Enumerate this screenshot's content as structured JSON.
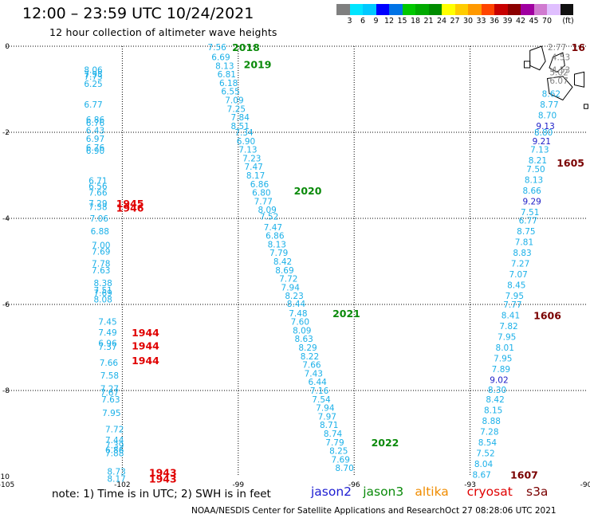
{
  "header": {
    "title": "12:00 – 23:59 UTC 10/24/2021",
    "subtitle": "12 hour collection of altimeter wave heights"
  },
  "color_scale": {
    "colors": [
      "#7f7f7f",
      "#00e5ff",
      "#00c8ff",
      "#0000ff",
      "#0073e6",
      "#00c800",
      "#00aa00",
      "#008c00",
      "#ffff00",
      "#ffcc00",
      "#ff9900",
      "#ff4400",
      "#c80000",
      "#8b0000",
      "#a000a0",
      "#d07ad0",
      "#e0bfff",
      "#111111"
    ],
    "labels": [
      "3",
      "6",
      "9",
      "12",
      "15",
      "18",
      "21",
      "24",
      "27",
      "30",
      "33",
      "36",
      "39",
      "42",
      "45",
      "70",
      "(ft)"
    ]
  },
  "map": {
    "x_ticks": [
      "-105",
      "-102",
      "-99",
      "-96",
      "-93",
      "-90"
    ],
    "y_ticks": [
      "0",
      "-2",
      "-4",
      "-6",
      "-8",
      "-10"
    ],
    "track_colors": {
      "jason2": "#1c1cd2",
      "jason3": "#0a8a0a",
      "altika": "#f08c00",
      "cryosat": "#e00000",
      "s3a": "#7a0000",
      "swh": "#1bb0e8",
      "swh_high": "#2020c8",
      "island": "#000000",
      "coast_label": "#808080"
    },
    "tracks": [
      {
        "name": "track-left",
        "readings": [
          {
            "lon": -102.75,
            "lat": -0.55,
            "v": "8.06"
          },
          {
            "lon": -102.75,
            "lat": -0.65,
            "v": "7.98"
          },
          {
            "lon": -102.75,
            "lat": -0.7,
            "v": "7.73"
          },
          {
            "lon": -102.75,
            "lat": -0.87,
            "v": "6.25"
          },
          {
            "lon": -102.75,
            "lat": -1.35,
            "v": "6.77"
          },
          {
            "lon": -102.7,
            "lat": -1.7,
            "v": "6.86"
          },
          {
            "lon": -102.7,
            "lat": -1.78,
            "v": "6.76"
          },
          {
            "lon": -102.7,
            "lat": -1.95,
            "v": "6.43"
          },
          {
            "lon": -102.7,
            "lat": -2.15,
            "v": "6.97"
          },
          {
            "lon": -102.7,
            "lat": -2.35,
            "v": "6.76"
          },
          {
            "lon": -102.7,
            "lat": -2.43,
            "v": "6.90"
          },
          {
            "lon": -102.63,
            "lat": -3.12,
            "v": "6.71"
          },
          {
            "lon": -102.63,
            "lat": -3.25,
            "v": "6.56"
          },
          {
            "lon": -102.63,
            "lat": -3.4,
            "v": "7.66"
          },
          {
            "lon": -102.63,
            "lat": -3.65,
            "v": "7.29"
          },
          {
            "lon": -102.63,
            "lat": -3.73,
            "v": "7.38"
          },
          {
            "lon": -102.6,
            "lat": -4.0,
            "v": "7.06"
          },
          {
            "lon": -102.58,
            "lat": -4.3,
            "v": "6.88"
          },
          {
            "lon": -102.55,
            "lat": -4.62,
            "v": "7.00"
          },
          {
            "lon": -102.55,
            "lat": -4.77,
            "v": "7.69"
          },
          {
            "lon": -102.55,
            "lat": -5.05,
            "v": "7.78"
          },
          {
            "lon": -102.55,
            "lat": -5.2,
            "v": "7.63"
          },
          {
            "lon": -102.5,
            "lat": -5.5,
            "v": "8.38"
          },
          {
            "lon": -102.5,
            "lat": -5.67,
            "v": "7.51"
          },
          {
            "lon": -102.5,
            "lat": -5.73,
            "v": "7.69"
          },
          {
            "lon": -102.5,
            "lat": -5.88,
            "v": "8.08"
          },
          {
            "lon": -102.38,
            "lat": -6.4,
            "v": "7.45"
          },
          {
            "lon": -102.38,
            "lat": -6.65,
            "v": "7.49"
          },
          {
            "lon": -102.38,
            "lat": -6.9,
            "v": "6.96"
          },
          {
            "lon": -102.38,
            "lat": -6.98,
            "v": "7.37"
          },
          {
            "lon": -102.35,
            "lat": -7.35,
            "v": "7.66"
          },
          {
            "lon": -102.33,
            "lat": -7.65,
            "v": "7.58"
          },
          {
            "lon": -102.33,
            "lat": -7.95,
            "v": "7.27"
          },
          {
            "lon": -102.33,
            "lat": -8.05,
            "v": "7.67"
          },
          {
            "lon": -102.3,
            "lat": -8.2,
            "v": "7.63"
          },
          {
            "lon": -102.28,
            "lat": -8.52,
            "v": "7.95"
          },
          {
            "lon": -102.2,
            "lat": -8.9,
            "v": "7.72"
          },
          {
            "lon": -102.2,
            "lat": -9.15,
            "v": "7.44"
          },
          {
            "lon": -102.2,
            "lat": -9.27,
            "v": "7.39"
          },
          {
            "lon": -102.2,
            "lat": -9.38,
            "v": "6.86"
          },
          {
            "lon": -102.2,
            "lat": -9.45,
            "v": "7.88"
          },
          {
            "lon": -102.15,
            "lat": -9.88,
            "v": "8.73"
          },
          {
            "lon": -102.15,
            "lat": -10.05,
            "v": "8.17"
          }
        ],
        "times": [
          {
            "lon": -101.8,
            "lat": -3.65,
            "t": "1945",
            "c": "#e00000"
          },
          {
            "lon": -101.8,
            "lat": -3.75,
            "t": "1946",
            "c": "#e00000"
          },
          {
            "lon": -101.4,
            "lat": -6.65,
            "t": "1944",
            "c": "#e00000"
          },
          {
            "lon": -101.4,
            "lat": -6.95,
            "t": "1944",
            "c": "#e00000"
          },
          {
            "lon": -101.4,
            "lat": -7.3,
            "t": "1944",
            "c": "#e00000"
          },
          {
            "lon": -100.95,
            "lat": -9.9,
            "t": "1943",
            "c": "#e00000"
          },
          {
            "lon": -100.95,
            "lat": -10.05,
            "t": "1943",
            "c": "#e00000"
          }
        ]
      },
      {
        "name": "track-middle",
        "readings": [
          {
            "lon": -99.55,
            "lat": -0.02,
            "v": "7.56"
          },
          {
            "lon": -99.45,
            "lat": -0.25,
            "v": "6.69"
          },
          {
            "lon": -99.35,
            "lat": -0.45,
            "v": "8.13"
          },
          {
            "lon": -99.3,
            "lat": -0.65,
            "v": "6.81"
          },
          {
            "lon": -99.25,
            "lat": -0.85,
            "v": "6.18"
          },
          {
            "lon": -99.2,
            "lat": -1.05,
            "v": "6.55"
          },
          {
            "lon": -99.1,
            "lat": -1.25,
            "v": "7.09"
          },
          {
            "lon": -99.05,
            "lat": -1.45,
            "v": "7.25"
          },
          {
            "lon": -98.95,
            "lat": -1.65,
            "v": "7.84"
          },
          {
            "lon": -98.95,
            "lat": -1.85,
            "v": "8.51"
          },
          {
            "lon": -98.85,
            "lat": -2.0,
            "v": "7.34"
          },
          {
            "lon": -98.8,
            "lat": -2.2,
            "v": "6.90"
          },
          {
            "lon": -98.75,
            "lat": -2.4,
            "v": "7.13"
          },
          {
            "lon": -98.65,
            "lat": -2.6,
            "v": "7.23"
          },
          {
            "lon": -98.6,
            "lat": -2.8,
            "v": "7.47"
          },
          {
            "lon": -98.55,
            "lat": -3.0,
            "v": "8.17"
          },
          {
            "lon": -98.45,
            "lat": -3.2,
            "v": "6.86"
          },
          {
            "lon": -98.4,
            "lat": -3.4,
            "v": "6.80"
          },
          {
            "lon": -98.35,
            "lat": -3.6,
            "v": "7.77"
          },
          {
            "lon": -98.25,
            "lat": -3.8,
            "v": "8.09"
          },
          {
            "lon": -98.2,
            "lat": -3.95,
            "v": "7.52"
          },
          {
            "lon": -98.1,
            "lat": -4.2,
            "v": "7.47"
          },
          {
            "lon": -98.05,
            "lat": -4.4,
            "v": "6.86"
          },
          {
            "lon": -98.0,
            "lat": -4.6,
            "v": "8.13"
          },
          {
            "lon": -97.95,
            "lat": -4.8,
            "v": "7.79"
          },
          {
            "lon": -97.85,
            "lat": -5.0,
            "v": "8.42"
          },
          {
            "lon": -97.8,
            "lat": -5.2,
            "v": "8.69"
          },
          {
            "lon": -97.7,
            "lat": -5.4,
            "v": "7.72"
          },
          {
            "lon": -97.65,
            "lat": -5.6,
            "v": "7.94"
          },
          {
            "lon": -97.55,
            "lat": -5.8,
            "v": "8.23"
          },
          {
            "lon": -97.5,
            "lat": -5.98,
            "v": "8.44"
          },
          {
            "lon": -97.45,
            "lat": -6.2,
            "v": "7.48"
          },
          {
            "lon": -97.4,
            "lat": -6.4,
            "v": "7.60"
          },
          {
            "lon": -97.35,
            "lat": -6.6,
            "v": "8.09"
          },
          {
            "lon": -97.3,
            "lat": -6.8,
            "v": "8.63"
          },
          {
            "lon": -97.2,
            "lat": -7.0,
            "v": "8.29"
          },
          {
            "lon": -97.15,
            "lat": -7.2,
            "v": "8.22"
          },
          {
            "lon": -97.1,
            "lat": -7.4,
            "v": "7.66"
          },
          {
            "lon": -97.05,
            "lat": -7.6,
            "v": "7.43"
          },
          {
            "lon": -96.95,
            "lat": -7.8,
            "v": "6.44"
          },
          {
            "lon": -96.9,
            "lat": -8.0,
            "v": "7.16"
          },
          {
            "lon": -96.85,
            "lat": -8.2,
            "v": "7.54"
          },
          {
            "lon": -96.75,
            "lat": -8.4,
            "v": "7.94"
          },
          {
            "lon": -96.7,
            "lat": -8.6,
            "v": "7.97"
          },
          {
            "lon": -96.65,
            "lat": -8.8,
            "v": "8.71"
          },
          {
            "lon": -96.55,
            "lat": -9.0,
            "v": "8.74"
          },
          {
            "lon": -96.5,
            "lat": -9.2,
            "v": "7.79"
          },
          {
            "lon": -96.4,
            "lat": -9.4,
            "v": "8.25"
          },
          {
            "lon": -96.35,
            "lat": -9.6,
            "v": "7.69"
          },
          {
            "lon": -96.25,
            "lat": -9.8,
            "v": "8.70"
          }
        ],
        "times": [
          {
            "lon": -98.8,
            "lat": -0.02,
            "t": "2018",
            "c": "#0a8a0a"
          },
          {
            "lon": -98.5,
            "lat": -0.42,
            "t": "2019",
            "c": "#0a8a0a"
          },
          {
            "lon": -97.2,
            "lat": -3.35,
            "t": "2020",
            "c": "#0a8a0a"
          },
          {
            "lon": -96.2,
            "lat": -6.2,
            "t": "2021",
            "c": "#0a8a0a"
          },
          {
            "lon": -95.2,
            "lat": -9.2,
            "t": "2022",
            "c": "#0a8a0a"
          }
        ]
      },
      {
        "name": "track-right",
        "readings": [
          {
            "lon": -90.75,
            "lat": -0.02,
            "v": "2.77",
            "c": "#808080"
          },
          {
            "lon": -90.65,
            "lat": -0.25,
            "v": "4.53",
            "c": "#808080"
          },
          {
            "lon": -90.65,
            "lat": -0.55,
            "v": "4.53",
            "c": "#808080"
          },
          {
            "lon": -90.7,
            "lat": -0.6,
            "v": "5.02",
            "c": "#808080"
          },
          {
            "lon": -90.7,
            "lat": -0.8,
            "v": "6.07",
            "c": "#808080"
          },
          {
            "lon": -90.9,
            "lat": -1.1,
            "v": "8.62"
          },
          {
            "lon": -90.95,
            "lat": -1.35,
            "v": "8.77"
          },
          {
            "lon": -91.0,
            "lat": -1.6,
            "v": "8.70"
          },
          {
            "lon": -91.05,
            "lat": -1.85,
            "v": "9.13",
            "c": "#2020c8"
          },
          {
            "lon": -91.1,
            "lat": -2.0,
            "v": "8.80"
          },
          {
            "lon": -91.15,
            "lat": -2.2,
            "v": "9.21",
            "c": "#2020c8"
          },
          {
            "lon": -91.2,
            "lat": -2.4,
            "v": "7.13"
          },
          {
            "lon": -91.25,
            "lat": -2.65,
            "v": "8.21"
          },
          {
            "lon": -91.3,
            "lat": -2.85,
            "v": "7.50"
          },
          {
            "lon": -91.35,
            "lat": -3.1,
            "v": "8.13"
          },
          {
            "lon": -91.4,
            "lat": -3.35,
            "v": "8.66"
          },
          {
            "lon": -91.4,
            "lat": -3.6,
            "v": "9.29",
            "c": "#2020c8"
          },
          {
            "lon": -91.45,
            "lat": -3.85,
            "v": "7.51"
          },
          {
            "lon": -91.5,
            "lat": -4.05,
            "v": "6.77"
          },
          {
            "lon": -91.55,
            "lat": -4.3,
            "v": "8.75"
          },
          {
            "lon": -91.6,
            "lat": -4.55,
            "v": "7.81"
          },
          {
            "lon": -91.65,
            "lat": -4.8,
            "v": "8.83"
          },
          {
            "lon": -91.7,
            "lat": -5.05,
            "v": "7.27"
          },
          {
            "lon": -91.75,
            "lat": -5.3,
            "v": "7.07"
          },
          {
            "lon": -91.8,
            "lat": -5.55,
            "v": "8.45"
          },
          {
            "lon": -91.85,
            "lat": -5.8,
            "v": "7.95"
          },
          {
            "lon": -91.9,
            "lat": -6.0,
            "v": "7.77"
          },
          {
            "lon": -91.95,
            "lat": -6.25,
            "v": "8.41"
          },
          {
            "lon": -92.0,
            "lat": -6.5,
            "v": "7.82"
          },
          {
            "lon": -92.05,
            "lat": -6.75,
            "v": "7.95"
          },
          {
            "lon": -92.1,
            "lat": -7.0,
            "v": "8.01"
          },
          {
            "lon": -92.15,
            "lat": -7.25,
            "v": "7.95"
          },
          {
            "lon": -92.2,
            "lat": -7.5,
            "v": "7.89"
          },
          {
            "lon": -92.25,
            "lat": -7.75,
            "v": "9.02",
            "c": "#2020c8"
          },
          {
            "lon": -92.3,
            "lat": -7.98,
            "v": "8.30"
          },
          {
            "lon": -92.35,
            "lat": -8.2,
            "v": "8.42"
          },
          {
            "lon": -92.4,
            "lat": -8.45,
            "v": "8.15"
          },
          {
            "lon": -92.45,
            "lat": -8.7,
            "v": "8.88"
          },
          {
            "lon": -92.5,
            "lat": -8.95,
            "v": "7.28"
          },
          {
            "lon": -92.55,
            "lat": -9.2,
            "v": "8.54"
          },
          {
            "lon": -92.6,
            "lat": -9.45,
            "v": "7.52"
          },
          {
            "lon": -92.65,
            "lat": -9.7,
            "v": "8.04"
          },
          {
            "lon": -92.7,
            "lat": -9.95,
            "v": "8.67"
          }
        ],
        "times": [
          {
            "lon": -90.2,
            "lat": -0.02,
            "t": "16",
            "c": "#7a0000"
          },
          {
            "lon": -90.4,
            "lat": -2.7,
            "t": "1605",
            "c": "#7a0000"
          },
          {
            "lon": -91.0,
            "lat": -6.25,
            "t": "1606",
            "c": "#7a0000"
          },
          {
            "lon": -91.6,
            "lat": -9.95,
            "t": "1607",
            "c": "#7a0000"
          }
        ]
      }
    ]
  },
  "footer": {
    "note": "note:  1) Time is in UTC;  2) SWH is in feet",
    "legend": [
      {
        "label": "jason2",
        "color": "#1c1cd2"
      },
      {
        "label": "jason3",
        "color": "#0a8a0a"
      },
      {
        "label": "altika",
        "color": "#f08c00"
      },
      {
        "label": "cryosat",
        "color": "#e00000"
      },
      {
        "label": "s3a",
        "color": "#7a0000"
      }
    ],
    "credit": "NOAA/NESDIS Center for Satellite Applications and Research",
    "timestamp": "Oct 27 08:28:06 UTC 2021"
  }
}
